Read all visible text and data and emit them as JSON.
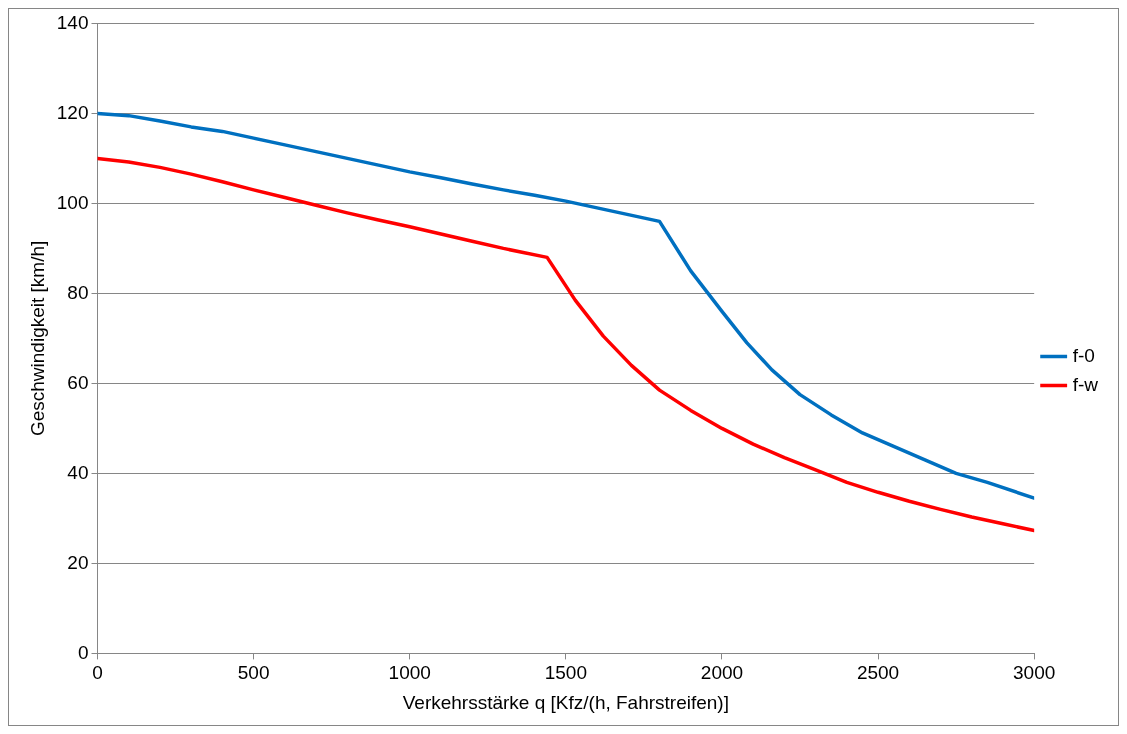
{
  "chart_data": {
    "type": "line",
    "xlabel": "Verkehrsstärke q [Kfz/(h, Fahrstreifen)]",
    "ylabel": "Geschwindigkeit [km/h]",
    "xlim": [
      0,
      3000
    ],
    "xticks": [
      0,
      500,
      1000,
      1500,
      2000,
      2500,
      3000
    ],
    "ylim": [
      0,
      140
    ],
    "yticks": [
      0,
      20,
      40,
      60,
      80,
      100,
      120,
      140
    ],
    "grid": "y",
    "legend": "right",
    "marker": "none",
    "line_style": "solid",
    "series": [
      {
        "name": "f-0",
        "color": "#0070c0",
        "x": [
          0,
          100,
          200,
          300,
          400,
          500,
          600,
          700,
          800,
          900,
          1000,
          1100,
          1200,
          1300,
          1400,
          1500,
          1600,
          1700,
          1800,
          1900,
          2000,
          2080,
          2160,
          2250,
          2350,
          2450,
          2550,
          2650,
          2750,
          2850,
          3000
        ],
        "values": [
          120,
          119.5,
          118.3,
          117,
          116,
          114.5,
          113,
          111.5,
          110,
          108.5,
          107,
          105.7,
          104.3,
          103,
          101.8,
          100.5,
          99,
          97.5,
          96,
          85,
          76,
          69,
          63,
          57.5,
          53,
          49,
          46,
          43,
          40,
          38,
          34.5
        ]
      },
      {
        "name": "f-w",
        "color": "#ff0000",
        "x": [
          0,
          100,
          200,
          300,
          400,
          500,
          600,
          700,
          800,
          900,
          1000,
          1100,
          1200,
          1300,
          1440,
          1530,
          1620,
          1710,
          1800,
          1900,
          2000,
          2100,
          2200,
          2300,
          2400,
          2500,
          2600,
          2700,
          2800,
          2900,
          3000
        ],
        "values": [
          110,
          109.2,
          108,
          106.5,
          104.8,
          103,
          101.3,
          99.6,
          97.9,
          96.3,
          94.8,
          93.2,
          91.6,
          90,
          88,
          78.5,
          70.5,
          64,
          58.5,
          54,
          50,
          46.5,
          43.5,
          40.8,
          38,
          35.8,
          33.8,
          32,
          30.3,
          28.8,
          27.3
        ]
      }
    ]
  }
}
